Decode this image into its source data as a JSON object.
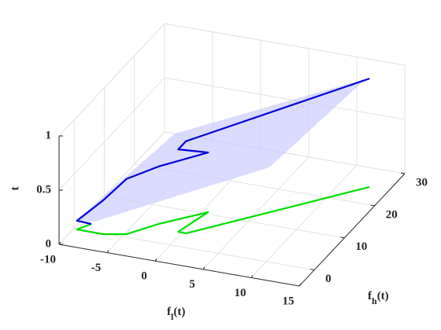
{
  "chart_data": {
    "type": "line3d",
    "x_label": {
      "base": "f",
      "sub": "l",
      "rest": "(t)"
    },
    "y_label": {
      "base": "f",
      "sub": "h",
      "rest": "(t)"
    },
    "z_label": "t",
    "x": [
      -8.83,
      -9.66,
      -6.93,
      -4.81,
      -2.8,
      0.63,
      -0.39,
      0.44,
      12.97
    ],
    "y": [
      1.97,
      -0.17,
      -0.23,
      0.88,
      5.1,
      10.55,
      3.9,
      3.85,
      24.79
    ],
    "series": [
      {
        "color": "#0000dd",
        "t": [
          0,
          0.08,
          0.31,
          0.51,
          0.53,
          0.55,
          0.76,
          0.85,
          1
        ]
      },
      {
        "color": "#00dd00",
        "t": [
          0,
          0,
          0,
          0,
          0,
          0,
          0,
          0,
          0
        ]
      }
    ],
    "xlim": [
      -10,
      15
    ],
    "xticks": [
      -10,
      -5,
      0,
      5,
      10,
      15
    ],
    "ylim": [
      -5,
      30
    ],
    "yticks": [
      0,
      10,
      20,
      30
    ],
    "zlim": [
      0,
      1
    ],
    "zticks": [
      0,
      0.5,
      1
    ],
    "grid": true
  }
}
